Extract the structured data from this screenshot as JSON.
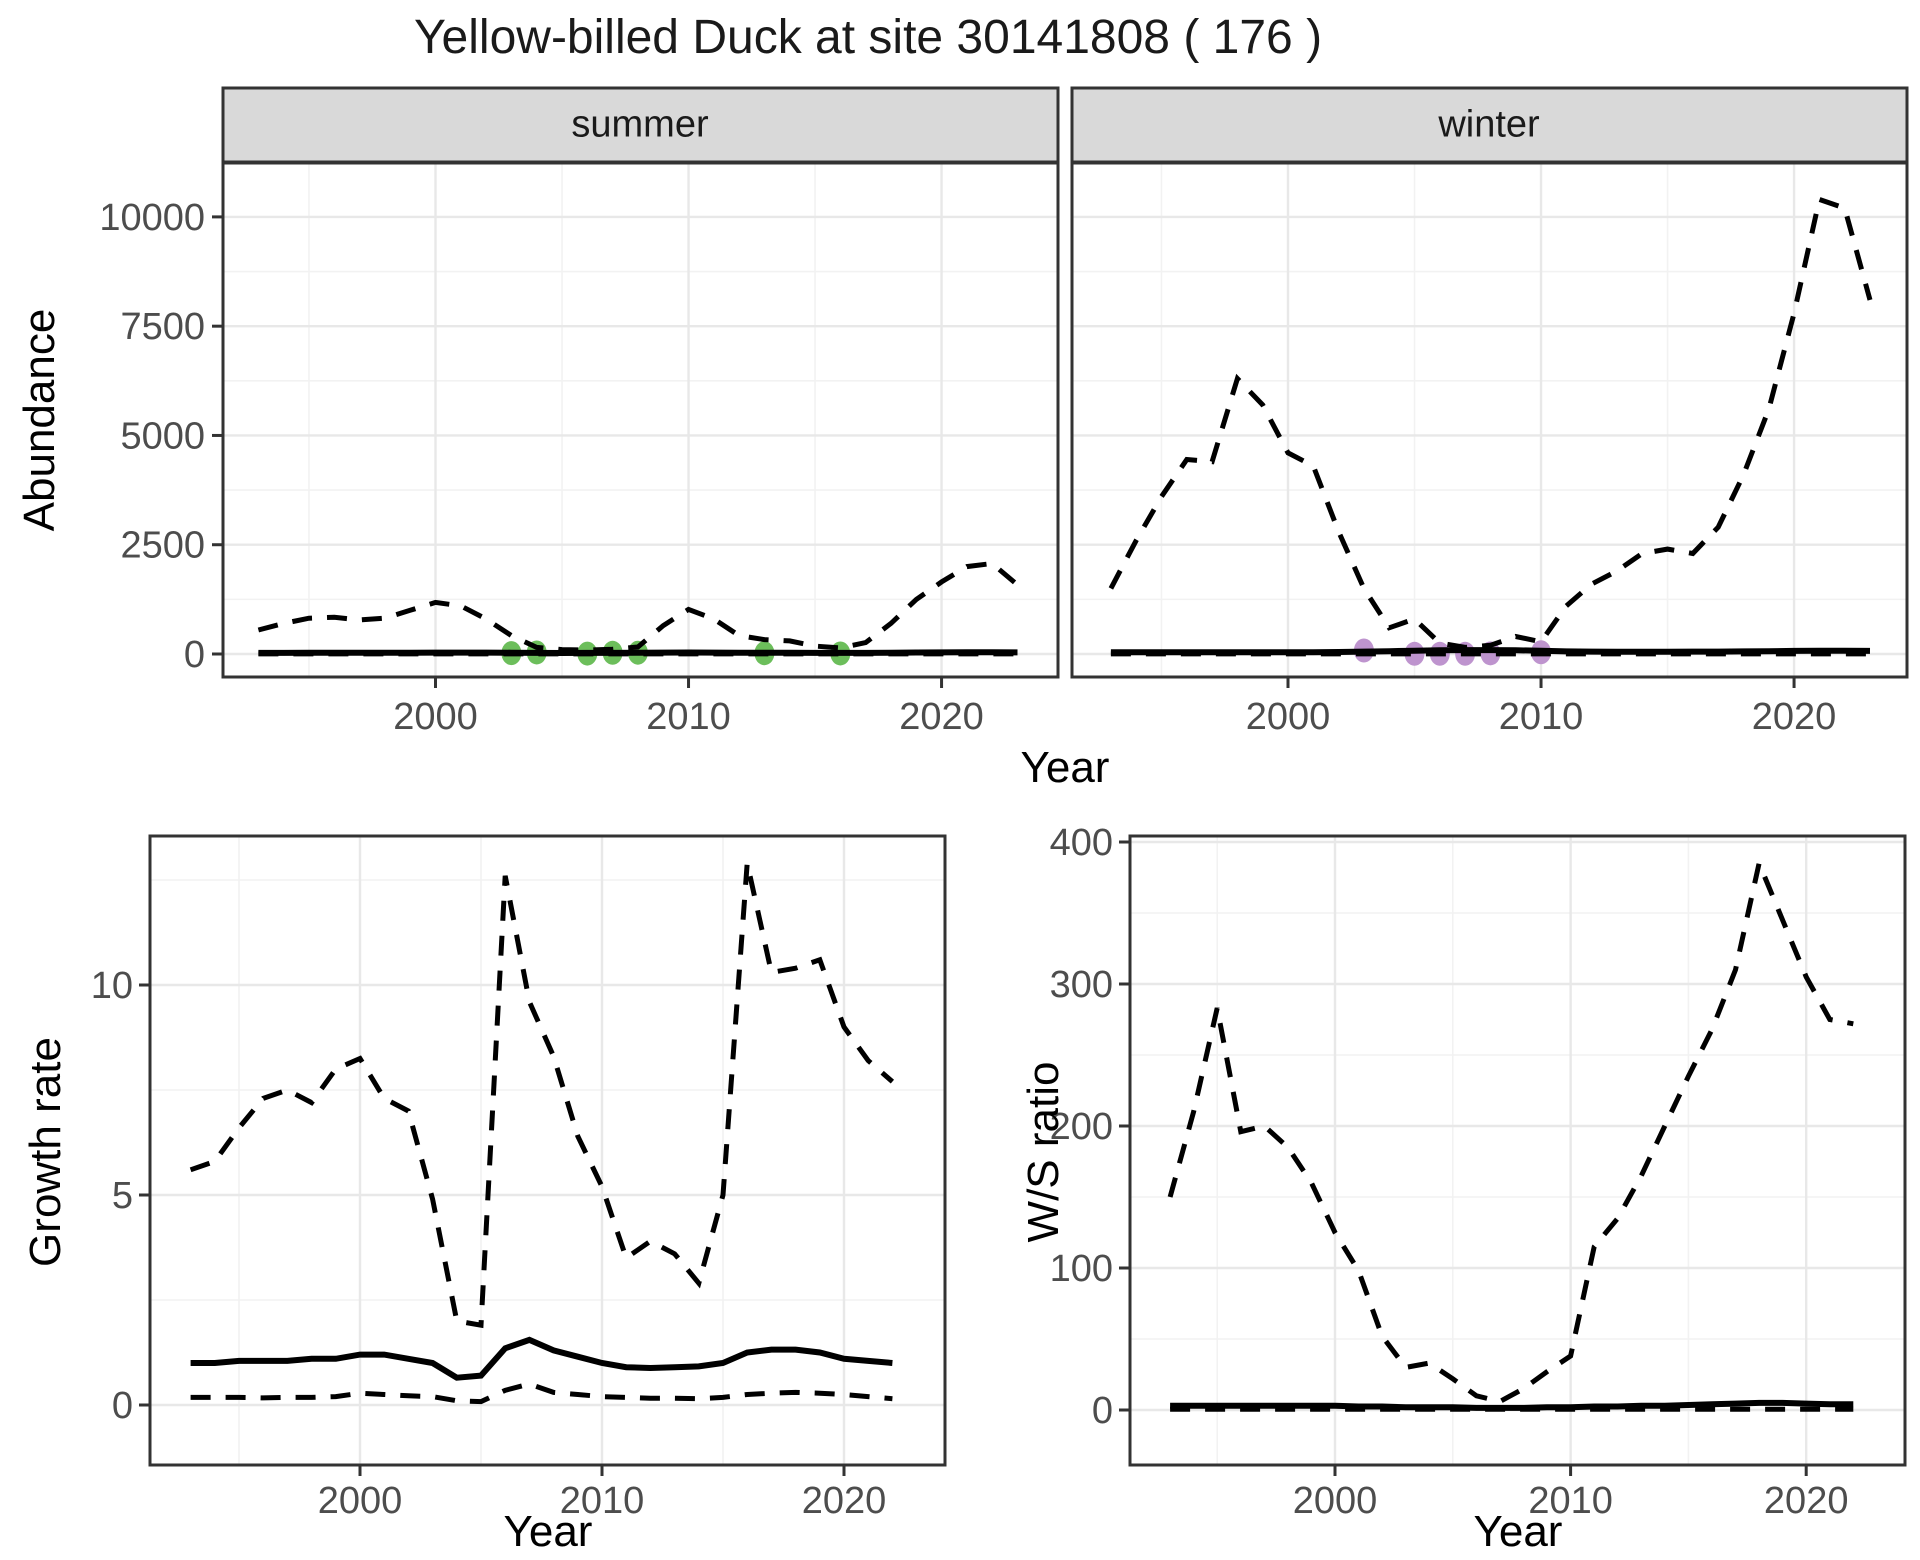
{
  "title": "Yellow-billed Duck at site 30141808 ( 176 )",
  "labels": {
    "y_axis_abundance": "Abundance",
    "x_axis_year_top": "Year",
    "y_axis_growth": "Growth rate",
    "x_axis_year_growth": "Year",
    "y_axis_ratio": "W/S ratio",
    "x_axis_year_ratio": "Year"
  },
  "colors": {
    "summer_points": "#6cbe5b",
    "winter_points": "#be94ce",
    "line": "#000000",
    "strip_fill": "#d9d9d9",
    "panel_border": "#333333",
    "grid_major": "#e8e8e8",
    "grid_minor": "#f2f2f2",
    "tick_text": "#4d4d4d"
  },
  "chart_data": [
    {
      "type": "line",
      "panel": "abundance-summer",
      "facet_label": "summer",
      "xlabel": "Year",
      "ylabel": "Abundance",
      "xlim": [
        1991.6,
        2024.6
      ],
      "ylim": [
        -520,
        11240
      ],
      "x_tick_values": [
        2000,
        2010,
        2020
      ],
      "x_tick_labels": [
        "2000",
        "2010",
        "2020"
      ],
      "x_minor_ticks": [
        1995,
        2005,
        2015
      ],
      "y_tick_values": [
        0,
        2500,
        5000,
        7500,
        10000
      ],
      "y_tick_labels": [
        "0",
        "2500",
        "5000",
        "7500",
        "10000"
      ],
      "y_minor_ticks": [
        1250,
        3750,
        6250,
        8750
      ],
      "x": [
        1993,
        1994,
        1995,
        1996,
        1997,
        1998,
        1999,
        2000,
        2001,
        2002,
        2003,
        2004,
        2005,
        2006,
        2007,
        2008,
        2009,
        2010,
        2011,
        2012,
        2013,
        2014,
        2015,
        2016,
        2017,
        2018,
        2019,
        2020,
        2021,
        2022,
        2023
      ],
      "series": [
        {
          "name": "upper_ci",
          "style": "dashed",
          "values": [
            550,
            700,
            820,
            840,
            780,
            820,
            1000,
            1180,
            1100,
            800,
            420,
            150,
            100,
            90,
            110,
            160,
            650,
            1020,
            800,
            420,
            330,
            300,
            180,
            140,
            260,
            700,
            1250,
            1650,
            2000,
            2070,
            1580
          ]
        },
        {
          "name": "fit",
          "style": "solid",
          "values": [
            25,
            26,
            27,
            28,
            28,
            29,
            30,
            32,
            33,
            32,
            30,
            26,
            24,
            25,
            26,
            28,
            32,
            35,
            33,
            30,
            28,
            27,
            26,
            25,
            26,
            30,
            34,
            36,
            38,
            38,
            36
          ]
        },
        {
          "name": "lower_ci",
          "style": "dashed",
          "values": [
            2,
            2,
            2,
            2,
            2,
            2,
            2,
            2,
            2,
            2,
            2,
            2,
            2,
            2,
            2,
            2,
            2,
            2,
            2,
            2,
            2,
            2,
            2,
            2,
            2,
            2,
            2,
            2,
            2,
            2,
            2
          ]
        }
      ],
      "points": {
        "name": "summer observations",
        "color": "#6cbe5b",
        "data": [
          [
            2003,
            20
          ],
          [
            2004,
            35
          ],
          [
            2006,
            10
          ],
          [
            2007,
            28
          ],
          [
            2008,
            30
          ],
          [
            2013,
            18
          ],
          [
            2016,
            12
          ]
        ]
      }
    },
    {
      "type": "line",
      "panel": "abundance-winter",
      "facet_label": "winter",
      "xlabel": "Year",
      "ylabel": "Abundance",
      "xlim": [
        1991.6,
        2024.6
      ],
      "ylim": [
        -520,
        11240
      ],
      "x_tick_values": [
        2000,
        2010,
        2020
      ],
      "x_tick_labels": [
        "2000",
        "2010",
        "2020"
      ],
      "x_minor_ticks": [
        1995,
        2005,
        2015
      ],
      "y_tick_values": [
        0,
        2500,
        5000,
        7500,
        10000
      ],
      "y_tick_labels": [
        "0",
        "2500",
        "5000",
        "7500",
        "10000"
      ],
      "y_minor_ticks": [
        1250,
        3750,
        6250,
        8750
      ],
      "x": [
        1993,
        1994,
        1995,
        1996,
        1997,
        1998,
        1999,
        2000,
        2001,
        2002,
        2003,
        2004,
        2005,
        2006,
        2007,
        2008,
        2009,
        2010,
        2011,
        2012,
        2013,
        2014,
        2015,
        2016,
        2017,
        2018,
        2019,
        2020,
        2021,
        2022,
        2023
      ],
      "series": [
        {
          "name": "upper_ci",
          "style": "dashed",
          "values": [
            1500,
            2600,
            3600,
            4450,
            4400,
            6300,
            5700,
            4600,
            4300,
            2800,
            1500,
            600,
            800,
            250,
            150,
            200,
            400,
            280,
            1100,
            1600,
            1900,
            2300,
            2400,
            2300,
            2900,
            4100,
            5600,
            7800,
            10400,
            10200,
            8100
          ]
        },
        {
          "name": "fit",
          "style": "solid",
          "values": [
            40,
            40,
            40,
            40,
            40,
            40,
            40,
            40,
            40,
            45,
            55,
            65,
            75,
            85,
            90,
            90,
            85,
            75,
            60,
            55,
            50,
            50,
            50,
            55,
            55,
            60,
            65,
            70,
            75,
            75,
            70
          ]
        },
        {
          "name": "lower_ci",
          "style": "dashed",
          "values": [
            2,
            2,
            2,
            2,
            2,
            2,
            2,
            2,
            2,
            2,
            2,
            2,
            2,
            2,
            2,
            2,
            2,
            2,
            2,
            2,
            2,
            2,
            2,
            2,
            2,
            2,
            2,
            2,
            2,
            2,
            2
          ]
        }
      ],
      "points": {
        "name": "winter observations",
        "color": "#be94ce",
        "data": [
          [
            2003,
            80
          ],
          [
            2005,
            5
          ],
          [
            2006,
            5
          ],
          [
            2007,
            5
          ],
          [
            2008,
            15
          ],
          [
            2010,
            40
          ]
        ]
      }
    },
    {
      "type": "line",
      "panel": "growth-rate",
      "facet_label": "",
      "xlabel": "Year",
      "ylabel": "Growth rate",
      "xlim": [
        1991.3,
        2024.2
      ],
      "ylim": [
        -1.4,
        13.5
      ],
      "x_tick_values": [
        2000,
        2010,
        2020
      ],
      "x_tick_labels": [
        "2000",
        "2010",
        "2020"
      ],
      "x_minor_ticks": [
        1995,
        2005,
        2015
      ],
      "y_tick_values": [
        0,
        5,
        10
      ],
      "y_tick_labels": [
        "0",
        "5",
        "10"
      ],
      "y_minor_ticks": [
        2.5,
        7.5,
        12.5
      ],
      "x": [
        1993,
        1994,
        1995,
        1996,
        1997,
        1998,
        1999,
        2000,
        2001,
        2002,
        2003,
        2004,
        2005,
        2006,
        2007,
        2008,
        2009,
        2010,
        2011,
        2012,
        2013,
        2014,
        2015,
        2016,
        2017,
        2018,
        2019,
        2020,
        2021,
        2022
      ],
      "series": [
        {
          "name": "upper_ci",
          "style": "dashed",
          "values": [
            5.6,
            5.8,
            6.6,
            7.3,
            7.5,
            7.2,
            8.0,
            8.25,
            7.3,
            7.0,
            4.9,
            2.0,
            1.9,
            12.6,
            9.6,
            8.3,
            6.4,
            5.2,
            3.5,
            3.9,
            3.6,
            2.9,
            5.0,
            12.9,
            10.3,
            10.4,
            10.6,
            9.0,
            8.2,
            7.7
          ]
        },
        {
          "name": "fit",
          "style": "solid",
          "values": [
            1.0,
            1.0,
            1.05,
            1.05,
            1.05,
            1.1,
            1.1,
            1.2,
            1.2,
            1.1,
            1.0,
            0.65,
            0.7,
            1.35,
            1.55,
            1.3,
            1.15,
            1.0,
            0.9,
            0.88,
            0.9,
            0.92,
            1.0,
            1.25,
            1.32,
            1.32,
            1.25,
            1.1,
            1.05,
            1.0
          ]
        },
        {
          "name": "lower_ci",
          "style": "dashed",
          "values": [
            0.18,
            0.18,
            0.18,
            0.17,
            0.18,
            0.18,
            0.2,
            0.28,
            0.25,
            0.22,
            0.2,
            0.1,
            0.08,
            0.35,
            0.5,
            0.3,
            0.25,
            0.2,
            0.18,
            0.16,
            0.16,
            0.15,
            0.18,
            0.25,
            0.28,
            0.3,
            0.28,
            0.25,
            0.2,
            0.15
          ]
        }
      ],
      "points": null
    },
    {
      "type": "line",
      "panel": "ws-ratio",
      "facet_label": "",
      "xlabel": "Year",
      "ylabel": "W/S ratio",
      "xlim": [
        1991.3,
        2024.2
      ],
      "ylim": [
        -39,
        404
      ],
      "x_tick_values": [
        2000,
        2010,
        2020
      ],
      "x_tick_labels": [
        "2000",
        "2010",
        "2020"
      ],
      "x_minor_ticks": [
        1995,
        2005,
        2015
      ],
      "y_tick_values": [
        0,
        100,
        200,
        300,
        400
      ],
      "y_tick_labels": [
        "0",
        "100",
        "200",
        "300",
        "400"
      ],
      "y_minor_ticks": [
        50,
        150,
        250,
        350
      ],
      "x": [
        1993,
        1994,
        1995,
        1996,
        1997,
        1998,
        1999,
        2000,
        2001,
        2002,
        2003,
        2004,
        2005,
        2006,
        2007,
        2008,
        2009,
        2010,
        2011,
        2012,
        2013,
        2014,
        2015,
        2016,
        2017,
        2018,
        2019,
        2020,
        2021,
        2022
      ],
      "series": [
        {
          "name": "upper_ci",
          "style": "dashed",
          "values": [
            150,
            210,
            283,
            196,
            200,
            185,
            160,
            125,
            98,
            52,
            30,
            33,
            22,
            10,
            6,
            15,
            27,
            38,
            115,
            135,
            165,
            200,
            235,
            268,
            310,
            385,
            345,
            305,
            275,
            272
          ]
        },
        {
          "name": "fit",
          "style": "solid",
          "values": [
            3,
            3,
            3,
            3,
            3,
            3,
            3,
            3,
            2.5,
            2.5,
            2,
            2,
            2,
            1.5,
            1.5,
            1.5,
            2,
            2,
            2.5,
            2.5,
            3,
            3,
            3.5,
            4,
            4.5,
            5,
            5,
            4.5,
            4,
            4
          ]
        },
        {
          "name": "lower_ci",
          "style": "dashed",
          "values": [
            0.5,
            0.5,
            0.5,
            0.5,
            0.5,
            0.5,
            0.5,
            0.5,
            0.5,
            0.5,
            0.5,
            0.5,
            0.5,
            0.5,
            0.5,
            0.5,
            0.5,
            0.5,
            0.5,
            0.5,
            0.5,
            0.5,
            0.5,
            0.5,
            0.5,
            0.5,
            0.5,
            0.5,
            0.5,
            0.5
          ]
        }
      ],
      "points": null
    }
  ]
}
